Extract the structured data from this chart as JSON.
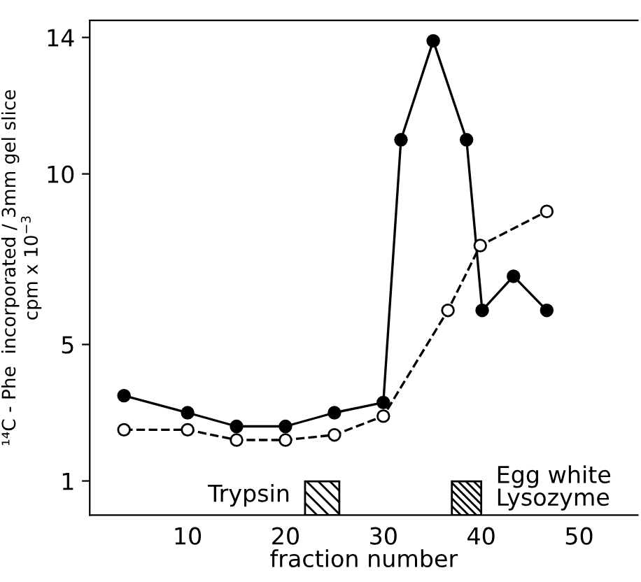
{
  "chart_data": {
    "type": "line",
    "xlabel": "fraction number",
    "ylabel": "¹⁴C - Phe  incorporated / 3mm gel slice\ncpm x 10$^{−3}$",
    "xlim": [
      0,
      56
    ],
    "xticks": [
      10,
      20,
      30,
      40,
      50
    ],
    "ylim": [
      0,
      14.5
    ],
    "yticks": [
      1,
      5,
      10,
      14
    ],
    "series": [
      {
        "color": "#000000",
        "marker": "circle",
        "line_style": "solid",
        "x": [
          3.5,
          10,
          15,
          20,
          25,
          30,
          31.8,
          35.1,
          38.5,
          40.1,
          43.3,
          46.7
        ],
        "values": [
          3.5,
          3.0,
          2.6,
          2.6,
          3.0,
          3.3,
          11,
          13.9,
          11,
          6.0,
          7.0,
          6.0
        ]
      },
      {
        "color": "#000000",
        "marker": "circle",
        "line_style": "dashed",
        "x": [
          3.5,
          10,
          15,
          20,
          25,
          30,
          36.6,
          39.9,
          46.7
        ],
        "values": [
          2.5,
          2.5,
          2.2,
          2.2,
          2.35,
          2.9,
          6.0,
          7.9,
          8.9
        ]
      }
    ],
    "bands": [
      {
        "axis": "x",
        "from": 22,
        "to": 25.5,
        "label": "Trypsin",
        "color": "#000000"
      },
      {
        "axis": "x",
        "from": 37,
        "to": 40,
        "label": "Egg white\nLysozyme",
        "color": "#000000"
      }
    ],
    "grid": false
  }
}
